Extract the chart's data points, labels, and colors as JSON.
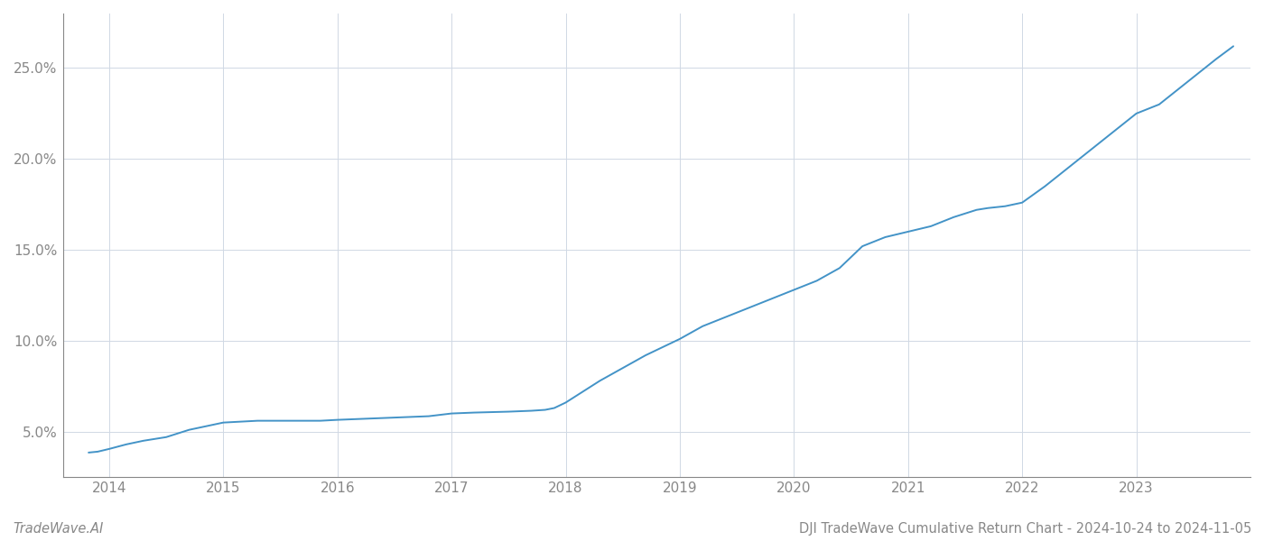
{
  "title": "DJI TradeWave Cumulative Return Chart - 2024-10-24 to 2024-11-05",
  "watermark": "TradeWave.AI",
  "line_color": "#4393c7",
  "background_color": "#ffffff",
  "grid_color": "#d0d8e4",
  "x_years": [
    2014,
    2015,
    2016,
    2017,
    2018,
    2019,
    2020,
    2021,
    2022,
    2023
  ],
  "x_values": [
    2013.82,
    2013.9,
    2014.0,
    2014.15,
    2014.3,
    2014.5,
    2014.7,
    2014.85,
    2015.0,
    2015.15,
    2015.3,
    2015.5,
    2015.7,
    2015.85,
    2016.0,
    2016.2,
    2016.4,
    2016.6,
    2016.8,
    2017.0,
    2017.2,
    2017.5,
    2017.7,
    2017.82,
    2017.9,
    2018.0,
    2018.1,
    2018.3,
    2018.5,
    2018.7,
    2018.9,
    2019.0,
    2019.2,
    2019.4,
    2019.6,
    2019.8,
    2020.0,
    2020.2,
    2020.4,
    2020.6,
    2020.8,
    2021.0,
    2021.2,
    2021.4,
    2021.5,
    2021.6,
    2021.7,
    2021.85,
    2022.0,
    2022.2,
    2022.4,
    2022.6,
    2022.8,
    2023.0,
    2023.2,
    2023.5,
    2023.7,
    2023.85
  ],
  "y_values": [
    3.85,
    3.9,
    4.05,
    4.3,
    4.5,
    4.7,
    5.1,
    5.3,
    5.5,
    5.55,
    5.6,
    5.6,
    5.6,
    5.6,
    5.65,
    5.7,
    5.75,
    5.8,
    5.85,
    6.0,
    6.05,
    6.1,
    6.15,
    6.2,
    6.3,
    6.6,
    7.0,
    7.8,
    8.5,
    9.2,
    9.8,
    10.1,
    10.8,
    11.3,
    11.8,
    12.3,
    12.8,
    13.3,
    14.0,
    15.2,
    15.7,
    16.0,
    16.3,
    16.8,
    17.0,
    17.2,
    17.3,
    17.4,
    17.6,
    18.5,
    19.5,
    20.5,
    21.5,
    22.5,
    23.0,
    24.5,
    25.5,
    26.2
  ],
  "ylim": [
    2.5,
    28.0
  ],
  "yticks": [
    5.0,
    10.0,
    15.0,
    20.0,
    25.0
  ],
  "xlim": [
    2013.6,
    2024.0
  ],
  "title_fontsize": 10.5,
  "watermark_fontsize": 10.5,
  "tick_fontsize": 11,
  "line_width": 1.4,
  "spine_color": "#888888",
  "tick_color": "#888888"
}
